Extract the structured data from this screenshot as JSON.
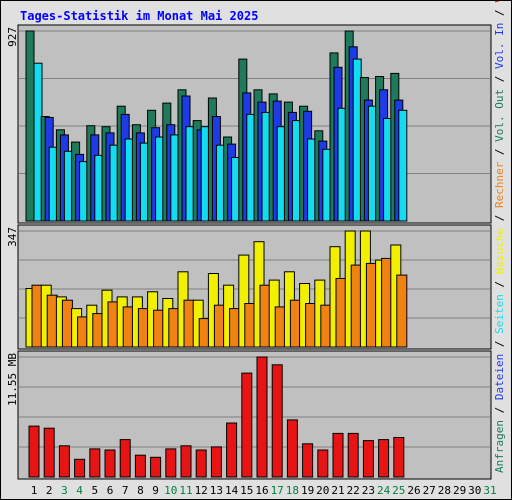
{
  "title": "Tages-Statistik im Monat Mai 2025",
  "colors": {
    "background": "#e0e0e0",
    "plot_bg": "#c0c0c0",
    "grid": "#808080",
    "title": "#0000ff",
    "weekday_label": "#000000",
    "weekend_label": "#008040",
    "anfragen": "#1e7a5a",
    "dateien": "#1e3ce6",
    "seiten": "#14dcf0",
    "besuche": "#f0f000",
    "rechner": "#f08214",
    "volumen": "#e61414"
  },
  "legend": {
    "right_panels": [
      {
        "text": "Anfragen",
        "color_key": "anfragen"
      },
      {
        "text": "Dateien",
        "color_key": "dateien"
      },
      {
        "text": "Seiten",
        "color_key": "seiten"
      },
      {
        "text": "Besuche",
        "color_key": "besuche"
      },
      {
        "text": "Rechner",
        "color_key": "rechner"
      },
      {
        "text": "Vol. Out",
        "color_key": "anfragen"
      },
      {
        "text": "Vol. In",
        "color_key": "dateien"
      },
      {
        "text": "Volumen",
        "color_key": "volumen"
      }
    ],
    "separator": " / "
  },
  "chart_data": [
    {
      "type": "bar",
      "panel": "top",
      "max_label": "927",
      "ylim": [
        0,
        927
      ],
      "grid": true,
      "categories": [
        "1",
        "2",
        "3",
        "4",
        "5",
        "6",
        "7",
        "8",
        "9",
        "10",
        "11",
        "12",
        "13",
        "14",
        "15",
        "16",
        "17",
        "18",
        "19",
        "20",
        "21",
        "22",
        "23",
        "24",
        "25",
        "26",
        "27",
        "28",
        "29",
        "30",
        "31"
      ],
      "weekend_days": [
        "3",
        "4",
        "10",
        "11",
        "17",
        "18",
        "24",
        "25",
        "31"
      ],
      "series": [
        {
          "name": "Anfragen",
          "values": [
            927,
            510,
            445,
            385,
            465,
            460,
            560,
            470,
            540,
            575,
            640,
            490,
            600,
            410,
            790,
            640,
            620,
            580,
            560,
            440,
            820,
            927,
            700,
            705,
            720,
            0,
            0,
            0,
            0,
            0,
            0
          ]
        },
        {
          "name": "Dateien",
          "values": [
            0,
            505,
            420,
            325,
            420,
            430,
            520,
            430,
            455,
            470,
            610,
            445,
            510,
            375,
            625,
            580,
            585,
            530,
            535,
            390,
            750,
            850,
            590,
            640,
            590,
            0,
            0,
            0,
            0,
            0,
            0
          ]
        },
        {
          "name": "Seiten",
          "values": [
            770,
            360,
            340,
            290,
            320,
            370,
            400,
            380,
            410,
            420,
            460,
            460,
            370,
            310,
            520,
            530,
            460,
            490,
            400,
            350,
            550,
            790,
            560,
            500,
            540,
            0,
            0,
            0,
            0,
            0,
            0
          ]
        }
      ]
    },
    {
      "type": "bar",
      "panel": "middle",
      "max_label": "347",
      "ylim": [
        0,
        347
      ],
      "grid": true,
      "categories": [
        "1",
        "2",
        "3",
        "4",
        "5",
        "6",
        "7",
        "8",
        "9",
        "10",
        "11",
        "12",
        "13",
        "14",
        "15",
        "16",
        "17",
        "18",
        "19",
        "20",
        "21",
        "22",
        "23",
        "24",
        "25",
        "26",
        "27",
        "28",
        "29",
        "30",
        "31"
      ],
      "series": [
        {
          "name": "Besuche",
          "values": [
            175,
            185,
            150,
            115,
            125,
            170,
            150,
            150,
            165,
            145,
            225,
            140,
            220,
            185,
            275,
            315,
            200,
            225,
            190,
            200,
            300,
            347,
            347,
            260,
            305,
            0,
            0,
            0,
            0,
            0,
            0
          ]
        },
        {
          "name": "Rechner",
          "values": [
            185,
            155,
            140,
            90,
            100,
            135,
            120,
            115,
            110,
            115,
            140,
            85,
            125,
            115,
            130,
            185,
            120,
            140,
            130,
            125,
            205,
            245,
            250,
            265,
            215,
            0,
            0,
            0,
            0,
            0,
            0
          ]
        }
      ]
    },
    {
      "type": "bar",
      "panel": "bottom",
      "max_label": "11.55 MB",
      "ylim": [
        0,
        11.55
      ],
      "grid": true,
      "categories": [
        "1",
        "2",
        "3",
        "4",
        "5",
        "6",
        "7",
        "8",
        "9",
        "10",
        "11",
        "12",
        "13",
        "14",
        "15",
        "16",
        "17",
        "18",
        "19",
        "20",
        "21",
        "22",
        "23",
        "24",
        "25",
        "26",
        "27",
        "28",
        "29",
        "30",
        "31"
      ],
      "series": [
        {
          "name": "Volumen",
          "values": [
            4.9,
            4.7,
            3.0,
            1.7,
            2.7,
            2.6,
            3.6,
            2.1,
            1.9,
            2.7,
            3.0,
            2.6,
            2.9,
            5.2,
            10.0,
            11.55,
            10.8,
            5.5,
            3.2,
            2.6,
            4.2,
            4.2,
            3.5,
            3.6,
            3.8,
            0,
            0,
            0,
            0,
            0,
            0
          ]
        }
      ]
    }
  ]
}
